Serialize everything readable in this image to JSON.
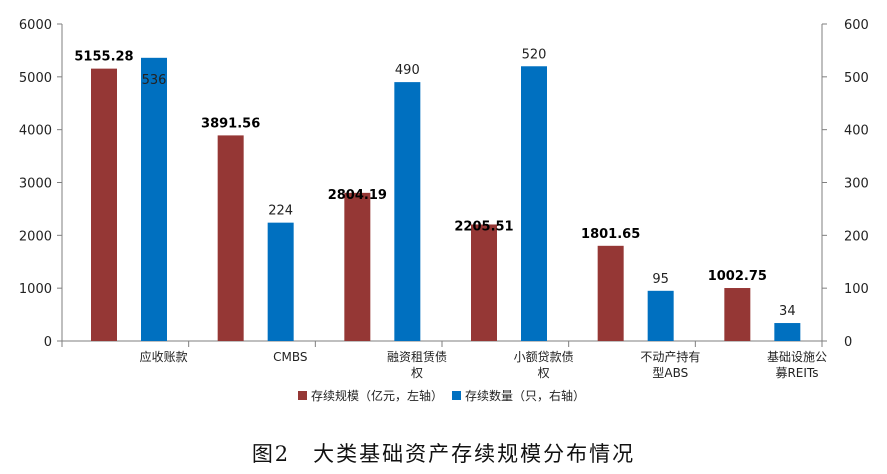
{
  "caption": "图2　大类基础资产存续规模分布情况",
  "colors": {
    "scale": "#953735",
    "count": "#0070C0",
    "axis": "#7f7f7f",
    "text": "#222222"
  },
  "chart_data": {
    "type": "bar",
    "categories": [
      [
        "应收账款"
      ],
      [
        "CMBS"
      ],
      [
        "融资租赁债",
        "权"
      ],
      [
        "小额贷款债",
        "权"
      ],
      [
        "不动产持有",
        "型ABS"
      ],
      [
        "基础设施公",
        "募REITs"
      ]
    ],
    "series": [
      {
        "name": "存续规模（亿元，左轴）",
        "axis": "left",
        "values": [
          5155.28,
          3891.56,
          2804.19,
          2205.51,
          1801.65,
          1002.75
        ],
        "labels": [
          "5155.28",
          "3891.56",
          "2804.19",
          "2205.51",
          "1801.65",
          "1002.75"
        ]
      },
      {
        "name": "存续数量（只，右轴）",
        "axis": "right",
        "values": [
          536,
          224,
          490,
          520,
          95,
          34
        ],
        "labels": [
          "536",
          "224",
          "490",
          "520",
          "95",
          "34"
        ]
      }
    ],
    "ylim_left": [
      0,
      6000
    ],
    "left_ticks": [
      "0",
      "1000",
      "2000",
      "3000",
      "4000",
      "5000",
      "6000"
    ],
    "ylim_right": [
      0,
      600
    ],
    "right_ticks": [
      "0",
      "100",
      "200",
      "300",
      "400",
      "500",
      "600"
    ],
    "grid": false,
    "legend": "bottom"
  }
}
